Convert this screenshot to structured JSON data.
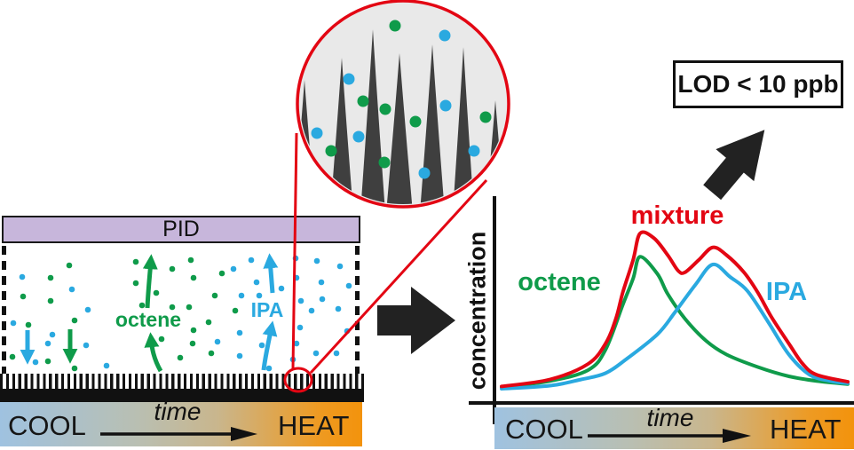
{
  "colors": {
    "green": "#0f9b4a",
    "blue": "#2aa9e0",
    "red": "#e30613",
    "purple": "#c7b6db",
    "spike_gray": "#3f3f3f",
    "magnifier_fill": "#e9e9e9",
    "black": "#111111",
    "gradient_cool": "#9fc2e0",
    "gradient_heat": "#f3930c"
  },
  "left_panel": {
    "pid_label": "PID",
    "octene_label": "octene",
    "ipa_label": "IPA",
    "cool_label": "COOL",
    "time_label": "time",
    "heat_label": "HEAT",
    "green_dots": [
      [
        78,
        299
      ],
      [
        57,
        313
      ],
      [
        26,
        334
      ],
      [
        57,
        339
      ],
      [
        32,
        366
      ],
      [
        84,
        361
      ],
      [
        14,
        402
      ],
      [
        54,
        407
      ],
      [
        84,
        415
      ],
      [
        153,
        295
      ],
      [
        194,
        303
      ],
      [
        153,
        319
      ],
      [
        176,
        330
      ],
      [
        160,
        344
      ],
      [
        194,
        346
      ],
      [
        182,
        382
      ],
      [
        203,
        403
      ],
      [
        215,
        293
      ],
      [
        250,
        308
      ],
      [
        218,
        313
      ],
      [
        242,
        333
      ],
      [
        213,
        346
      ],
      [
        265,
        350
      ],
      [
        235,
        363
      ],
      [
        218,
        372
      ],
      [
        217,
        387
      ],
      [
        238,
        398
      ]
    ],
    "blue_dots": [
      [
        25,
        312
      ],
      [
        81,
        326
      ],
      [
        99,
        349
      ],
      [
        15,
        364
      ],
      [
        59,
        377
      ],
      [
        54,
        387
      ],
      [
        97,
        389
      ],
      [
        40,
        408
      ],
      [
        120,
        412
      ],
      [
        283,
        293
      ],
      [
        263,
        303
      ],
      [
        289,
        318
      ],
      [
        292,
        333
      ],
      [
        272,
        333
      ],
      [
        317,
        325
      ],
      [
        270,
        375
      ],
      [
        245,
        385
      ],
      [
        295,
        389
      ],
      [
        270,
        401
      ],
      [
        303,
        415
      ],
      [
        333,
        291
      ],
      [
        357,
        294
      ],
      [
        334,
        313
      ],
      [
        362,
        318
      ],
      [
        339,
        339
      ],
      [
        363,
        337
      ],
      [
        351,
        350
      ],
      [
        338,
        369
      ],
      [
        334,
        387
      ],
      [
        356,
        398
      ],
      [
        330,
        405
      ],
      [
        383,
        300
      ],
      [
        393,
        322
      ],
      [
        381,
        348
      ],
      [
        391,
        373
      ],
      [
        379,
        398
      ]
    ]
  },
  "magnifier": {
    "spikes": [
      [
        343,
        90,
        12
      ],
      [
        385,
        65,
        13
      ],
      [
        420,
        33,
        14
      ],
      [
        450,
        60,
        15
      ],
      [
        487,
        50,
        14
      ],
      [
        522,
        53,
        12
      ],
      [
        558,
        113,
        11
      ]
    ],
    "green_dots": [
      [
        445,
        29
      ],
      [
        409,
        114
      ],
      [
        434,
        123
      ],
      [
        468,
        137
      ],
      [
        547,
        132
      ],
      [
        373,
        170
      ],
      [
        433,
        183
      ]
    ],
    "blue_dots": [
      [
        501,
        40
      ],
      [
        393,
        89
      ],
      [
        502,
        119
      ],
      [
        357,
        150
      ],
      [
        404,
        154
      ],
      [
        534,
        170
      ],
      [
        478,
        195
      ]
    ]
  },
  "lod": {
    "label": "LOD < 10 ppb"
  },
  "chart_data": {
    "type": "line",
    "title": "",
    "ylabel": "concentration",
    "xlabel": "time",
    "x_axis_annotations": {
      "left": "COOL",
      "center": "time",
      "right": "HEAT"
    },
    "x_range": [
      0,
      1
    ],
    "y_range": [
      0,
      1
    ],
    "grid": false,
    "legend": "inline-labels",
    "series": [
      {
        "name": "octene",
        "color": "#0f9b4a",
        "points": [
          [
            0,
            0.01
          ],
          [
            0.14,
            0.05
          ],
          [
            0.25,
            0.12
          ],
          [
            0.3,
            0.25
          ],
          [
            0.35,
            0.54
          ],
          [
            0.38,
            0.71
          ],
          [
            0.4,
            0.85
          ],
          [
            0.45,
            0.74
          ],
          [
            0.48,
            0.61
          ],
          [
            0.53,
            0.45
          ],
          [
            0.59,
            0.31
          ],
          [
            0.65,
            0.22
          ],
          [
            0.74,
            0.14
          ],
          [
            0.83,
            0.08
          ],
          [
            0.91,
            0.05
          ],
          [
            1,
            0.03
          ]
        ]
      },
      {
        "name": "IPA",
        "color": "#2aa9e0",
        "points": [
          [
            0,
            0.0
          ],
          [
            0.14,
            0.02
          ],
          [
            0.23,
            0.06
          ],
          [
            0.3,
            0.1
          ],
          [
            0.36,
            0.19
          ],
          [
            0.45,
            0.35
          ],
          [
            0.5,
            0.49
          ],
          [
            0.56,
            0.67
          ],
          [
            0.61,
            0.8
          ],
          [
            0.66,
            0.72
          ],
          [
            0.71,
            0.63
          ],
          [
            0.77,
            0.43
          ],
          [
            0.83,
            0.22
          ],
          [
            0.89,
            0.09
          ],
          [
            0.95,
            0.05
          ],
          [
            1,
            0.035
          ]
        ]
      },
      {
        "name": "mixture",
        "color": "#e30613",
        "points": [
          [
            0,
            0.015
          ],
          [
            0.14,
            0.06
          ],
          [
            0.25,
            0.16
          ],
          [
            0.3,
            0.29
          ],
          [
            0.33,
            0.45
          ],
          [
            0.35,
            0.62
          ],
          [
            0.38,
            0.83
          ],
          [
            0.4,
            1.0
          ],
          [
            0.44,
            0.97
          ],
          [
            0.48,
            0.86
          ],
          [
            0.51,
            0.76
          ],
          [
            0.53,
            0.75
          ],
          [
            0.57,
            0.83
          ],
          [
            0.61,
            0.91
          ],
          [
            0.65,
            0.86
          ],
          [
            0.7,
            0.75
          ],
          [
            0.74,
            0.62
          ],
          [
            0.78,
            0.46
          ],
          [
            0.83,
            0.29
          ],
          [
            0.87,
            0.16
          ],
          [
            0.91,
            0.09
          ],
          [
            1,
            0.045
          ]
        ]
      }
    ]
  }
}
